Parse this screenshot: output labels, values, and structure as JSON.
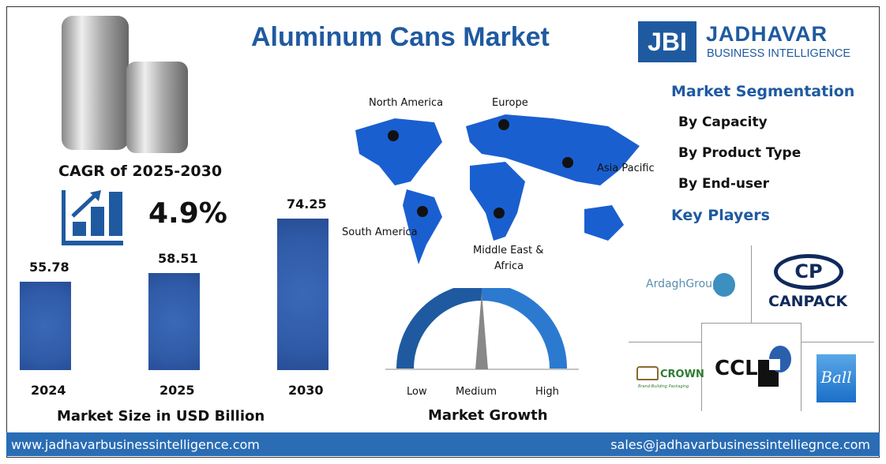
{
  "title": "Aluminum Cans Market",
  "brand": {
    "mark": "JBI",
    "name": "JADHAVAR",
    "sub": "BUSINESS INTELLIGENCE",
    "color": "#1f5aa0"
  },
  "cagr": {
    "label": "CAGR of 2025-2030",
    "value": "4.9%"
  },
  "chart_data": {
    "type": "bar",
    "categories": [
      "2024",
      "2025",
      "2030"
    ],
    "values": [
      55.78,
      58.51,
      74.25
    ],
    "value_labels": [
      "55.78",
      "58.51",
      "74.25"
    ],
    "xlabel": "Market Size in USD Billion",
    "bar_color": "#2f5aa6"
  },
  "map": {
    "regions": [
      "North America",
      "Europe",
      "Asia Pacific",
      "South America",
      "Middle East &",
      "Africa"
    ]
  },
  "gauge": {
    "low": "Low",
    "medium": "Medium",
    "high": "High",
    "title": "Market Growth",
    "level": "medium"
  },
  "segmentation": {
    "title": "Market Segmentation",
    "items": [
      "By Capacity",
      "By Product Type",
      "By End-user"
    ],
    "players_title": "Key Players"
  },
  "players": {
    "ardagh": "ArdaghGroup",
    "canpack": "CANPACK",
    "canpack_mark": "CP",
    "crown": "CROWN",
    "crown_tag": "Brand-Building Packaging",
    "ccl": "CCL",
    "ball": "Ball"
  },
  "footer": {
    "website": "www.jadhavarbusinessintelligence.com",
    "email": "sales@jadhavarbusinessintelliegnce.com"
  }
}
